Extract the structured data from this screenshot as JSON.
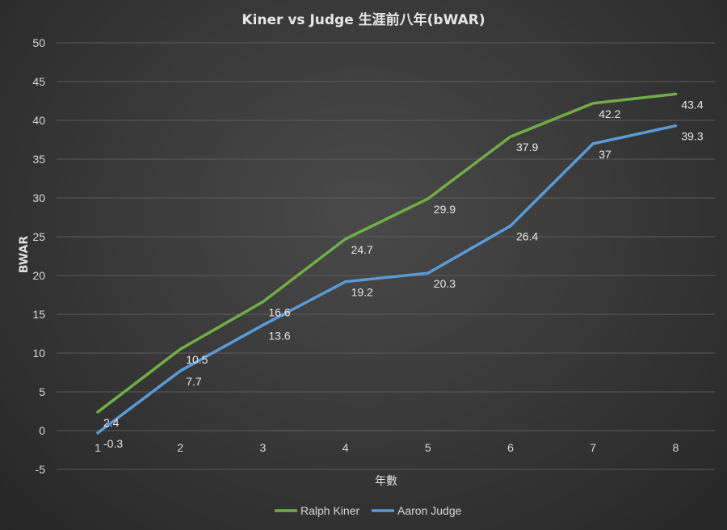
{
  "chart_data": {
    "type": "line",
    "title": "Kiner vs Judge 生涯前八年(bWAR)",
    "xlabel": "年數",
    "ylabel": "BWAR",
    "categories": [
      "1",
      "2",
      "3",
      "4",
      "5",
      "6",
      "7",
      "8"
    ],
    "ylim": [
      -5,
      50
    ],
    "yticks": [
      "-5",
      "0",
      "5",
      "10",
      "15",
      "20",
      "25",
      "30",
      "35",
      "40",
      "45",
      "50"
    ],
    "grid": true,
    "legend_position": "bottom",
    "series": [
      {
        "name": "Ralph Kiner",
        "color": "#70ad47",
        "values": [
          2.4,
          10.5,
          16.6,
          24.7,
          29.9,
          37.9,
          42.2,
          43.4
        ],
        "labels": [
          "2.4",
          "10.5",
          "16.6",
          "24.7",
          "29.9",
          "37.9",
          "42.2",
          "43.4"
        ]
      },
      {
        "name": "Aaron Judge",
        "color": "#5b9bd5",
        "values": [
          -0.3,
          7.7,
          13.6,
          19.2,
          20.3,
          26.4,
          37,
          39.3
        ],
        "labels": [
          "-0.3",
          "7.7",
          "13.6",
          "19.2",
          "20.3",
          "26.4",
          "37",
          "39.3"
        ]
      }
    ]
  }
}
